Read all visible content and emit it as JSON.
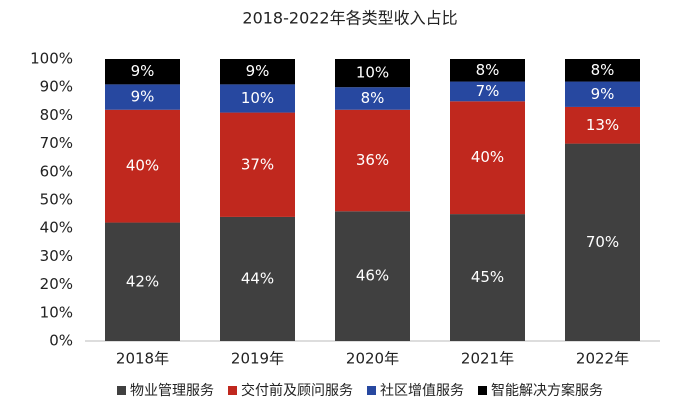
{
  "chart_data": {
    "type": "stacked_bar",
    "title": "2018-2022年各类型收入占比",
    "categories": [
      "2018年",
      "2019年",
      "2020年",
      "2021年",
      "2022年"
    ],
    "series": [
      {
        "name": "物业管理服务",
        "color": "#404040",
        "values": [
          42,
          44,
          46,
          45,
          70
        ],
        "value_labels": [
          "42%",
          "44%",
          "46%",
          "45%",
          "70%"
        ]
      },
      {
        "name": "交付前及顾问服务",
        "color": "#c0281e",
        "values": [
          40,
          37,
          36,
          40,
          13
        ],
        "value_labels": [
          "40%",
          "37%",
          "36%",
          "40%",
          "13%"
        ]
      },
      {
        "name": "社区增值服务",
        "color": "#2748a0",
        "values": [
          9,
          10,
          8,
          7,
          9
        ],
        "value_labels": [
          "9%",
          "10%",
          "8%",
          "7%",
          "9%"
        ]
      },
      {
        "name": "智能解决方案服务",
        "color": "#000000",
        "values": [
          9,
          9,
          10,
          8,
          8
        ],
        "value_labels": [
          "9%",
          "9%",
          "10%",
          "8%",
          "8%"
        ]
      }
    ],
    "ylim": [
      0,
      100
    ],
    "yticks": [
      {
        "value": 0,
        "label": "0%"
      },
      {
        "value": 10,
        "label": "10%"
      },
      {
        "value": 20,
        "label": "20%"
      },
      {
        "value": 30,
        "label": "30%"
      },
      {
        "value": 40,
        "label": "40%"
      },
      {
        "value": 50,
        "label": "50%"
      },
      {
        "value": 60,
        "label": "60%"
      },
      {
        "value": 70,
        "label": "70%"
      },
      {
        "value": 80,
        "label": "80%"
      },
      {
        "value": 90,
        "label": "90%"
      },
      {
        "value": 100,
        "label": "100%"
      }
    ],
    "legend": "bottom"
  }
}
